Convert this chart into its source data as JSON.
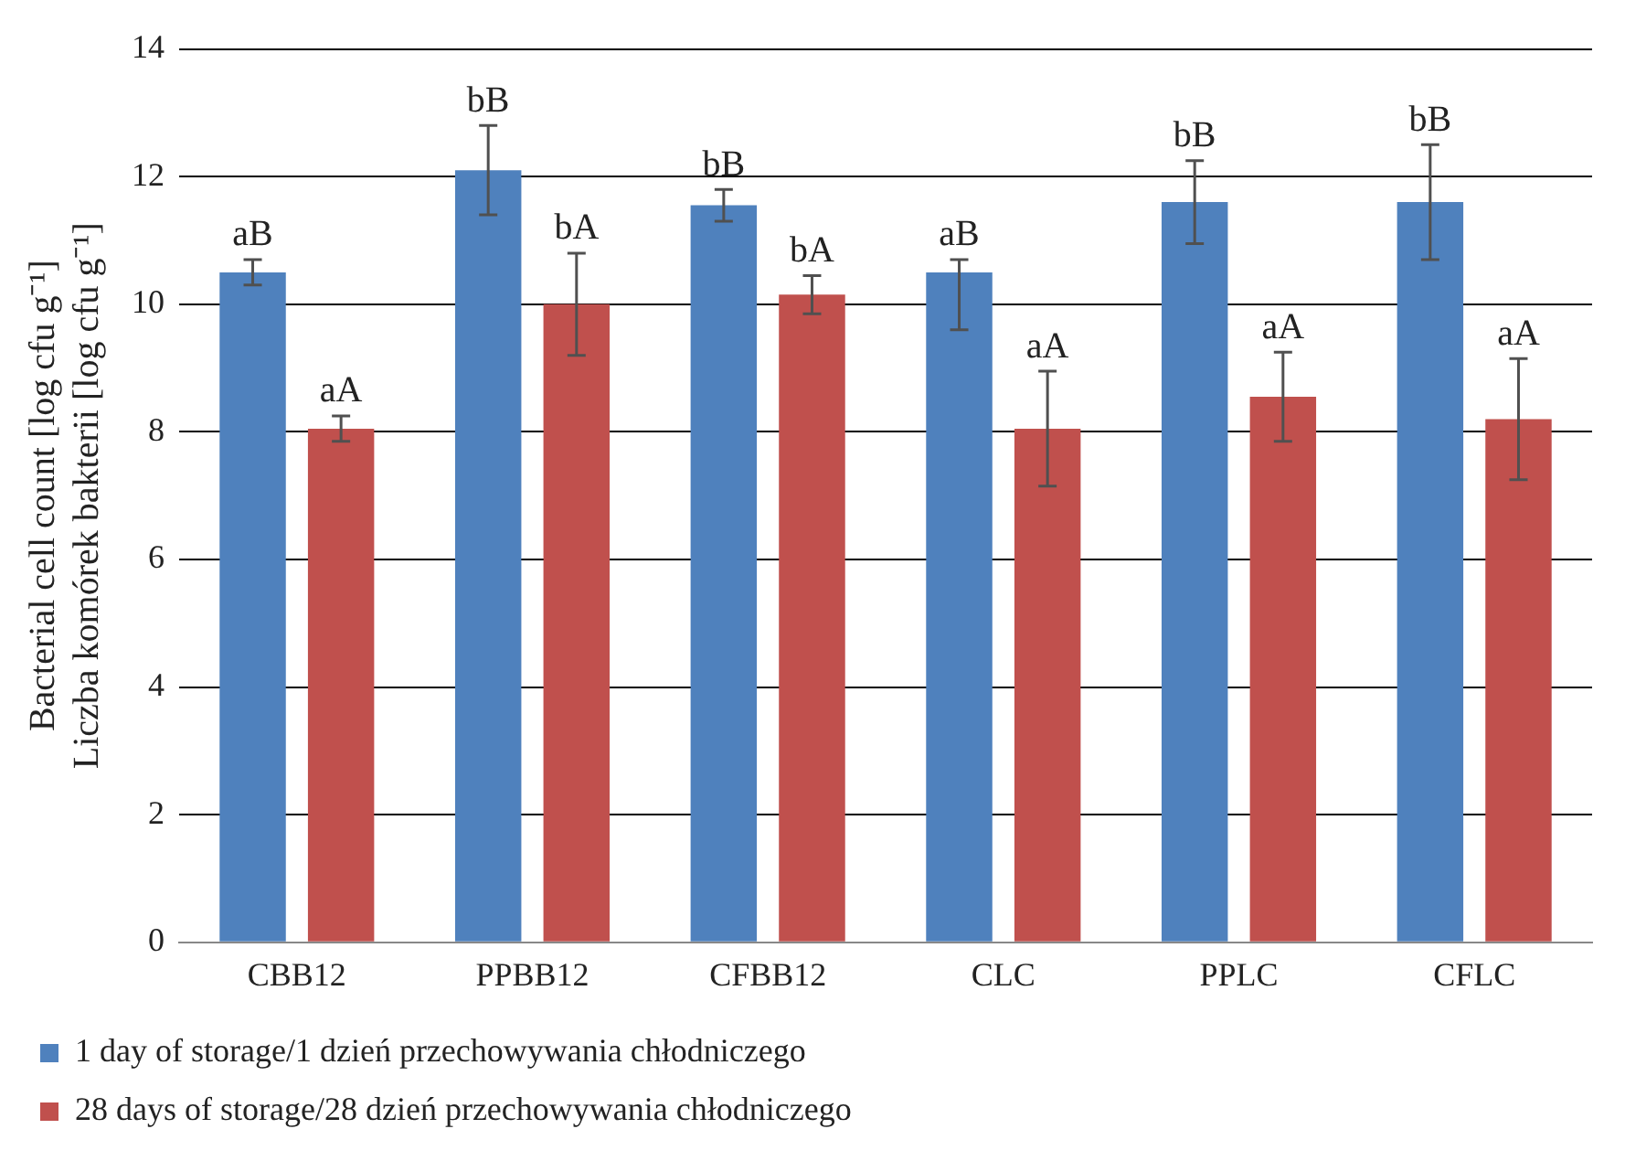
{
  "chart_data": {
    "type": "bar",
    "ylabel": "Bacterial cell count [log cfu g⁻¹]\nLiczba komórek bakterii [log cfu g⁻¹]",
    "categories": [
      "CBB12",
      "PPBB12",
      "CFBB12",
      "CLC",
      "PPLC",
      "CFLC"
    ],
    "series": [
      {
        "name": "1 day of storage/1 dzień przechowywania chłodniczego",
        "color": "#4f81bd",
        "values": [
          10.5,
          12.1,
          11.55,
          10.5,
          11.6,
          11.6
        ],
        "errors": [
          0.2,
          0.7,
          0.25,
          [
            9.6,
            10.7
          ],
          0.65,
          0.9
        ]
      },
      {
        "name": "28 days of storage/28 dzień przechowywania chłodniczego",
        "color": "#c0504d",
        "values": [
          8.05,
          10.0,
          10.15,
          8.05,
          8.55,
          8.2
        ],
        "errors": [
          0.2,
          0.8,
          0.3,
          0.9,
          0.7,
          0.95
        ]
      }
    ],
    "ylim": [
      0,
      14
    ],
    "yticks": [
      0,
      2,
      4,
      6,
      8,
      10,
      12,
      14
    ],
    "grid": "y",
    "legend": "bottom",
    "annotations": [
      "aB",
      "aA",
      "bB",
      "bA",
      "bB",
      "bA",
      "aB",
      "aA",
      "bB",
      "aA",
      "bB",
      "aA"
    ]
  }
}
